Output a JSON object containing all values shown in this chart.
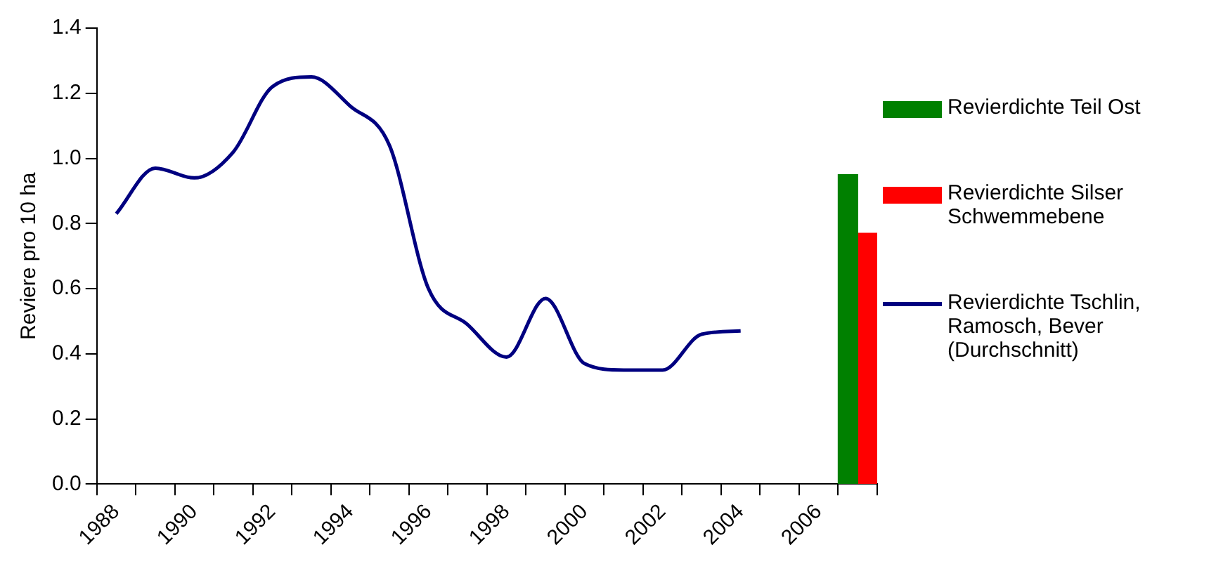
{
  "chart_data": {
    "type": "bar",
    "ylabel": "Reviere pro 10 ha",
    "categories": [
      "1988",
      null,
      "1990",
      null,
      "1992",
      null,
      "1994",
      null,
      "1996",
      null,
      "1998",
      null,
      "2000",
      null,
      "2002",
      null,
      "2004",
      null,
      "2006",
      null
    ],
    "series": [
      {
        "name": "Revierdichte Teil Ost",
        "color": "#008000",
        "values": [
          null,
          null,
          null,
          null,
          null,
          null,
          null,
          null,
          null,
          null,
          null,
          null,
          null,
          null,
          null,
          null,
          null,
          null,
          null,
          0.95
        ]
      },
      {
        "name": "Revierdichte Silser Schwemmebene",
        "color": "#ff0000",
        "values": [
          null,
          null,
          null,
          null,
          null,
          null,
          null,
          null,
          null,
          null,
          null,
          null,
          null,
          null,
          null,
          null,
          null,
          null,
          null,
          0.77
        ]
      },
      {
        "name": "Revierdichte Tschlin, Ramosch, Bever (Durchschnitt)",
        "type": "line",
        "color": "#000080",
        "values": [
          0.83,
          0.97,
          0.94,
          1.02,
          1.22,
          1.25,
          1.16,
          1.04,
          0.6,
          0.49,
          0.39,
          0.57,
          0.37,
          0.35,
          0.35,
          0.46,
          0.47,
          null,
          null,
          null
        ]
      }
    ],
    "ylim": [
      0,
      1.4
    ],
    "yticks": [
      {
        "value": 0,
        "label": "0.0"
      },
      0.2,
      0.4,
      0.6,
      0.8,
      {
        "value": 1,
        "label": "1.0"
      },
      1.2,
      1.4
    ],
    "grid": false,
    "legend": "right",
    "marker": "none",
    "line_style": "solid"
  }
}
